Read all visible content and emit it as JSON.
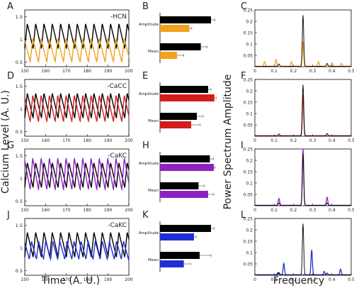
{
  "figure": {
    "left_ylabel": "Calcium Level (A. U.)",
    "left_xlabel": "Time (A. U.)",
    "right_ylabel": "Power Spectrum Amplitude",
    "right_xlabel": "Frequency"
  },
  "colors": {
    "control": "#000000",
    "hcn": "#f0a31e",
    "cacc": "#d21d1d",
    "cakc_up": "#8e22c0",
    "cakc_down": "#1f2fd6"
  },
  "chart_data": [
    {
      "panel": "A",
      "type": "line",
      "annotation": "-HCN",
      "xlim": [
        150,
        200
      ],
      "ylim": [
        0.4,
        1.65
      ],
      "xticks": [
        "150",
        "160",
        "170",
        "180",
        "190",
        "200"
      ],
      "yticks": [
        "0.5",
        "1",
        "1.5"
      ],
      "series": [
        {
          "color": "#000000",
          "period": 4,
          "min": 0.8,
          "max": 1.35
        },
        {
          "color": "#f0a31e",
          "period": 4,
          "min": 0.5,
          "max": 1.02
        }
      ]
    },
    {
      "panel": "B",
      "type": "bar",
      "categories": [
        "Amplitude",
        "Mean"
      ],
      "series": [
        {
          "color": "#000000",
          "values": [
            0.9,
            0.72
          ],
          "errors": [
            0.07,
            0.11
          ]
        },
        {
          "color": "#f0a31e",
          "values": [
            0.52,
            0.3
          ],
          "errors": [
            0.04,
            0.12
          ]
        }
      ]
    },
    {
      "panel": "C",
      "type": "line",
      "xlim": [
        0,
        0.5
      ],
      "ylim": [
        0,
        0.25
      ],
      "xticks": [
        "0",
        "0.1",
        "0.2",
        "0.3",
        "0.4",
        "0.5"
      ],
      "yticks": [
        "0.05",
        "0.1",
        "0.15",
        "0.2",
        "0.25"
      ],
      "series": [
        {
          "color": "#000000",
          "peaks": [
            [
              0.25,
              0.225
            ],
            [
              0.375,
              0.012
            ],
            [
              0.125,
              0.01
            ]
          ]
        },
        {
          "color": "#f0a31e",
          "peaks": [
            [
              0.25,
              0.11
            ],
            [
              0.05,
              0.02
            ],
            [
              0.11,
              0.03
            ],
            [
              0.19,
              0.02
            ],
            [
              0.33,
              0.02
            ],
            [
              0.4,
              0.015
            ],
            [
              0.45,
              0.012
            ]
          ]
        }
      ]
    },
    {
      "panel": "D",
      "type": "line",
      "annotation": "-CaCC",
      "xlim": [
        150,
        200
      ],
      "ylim": [
        0.4,
        1.65
      ],
      "xticks": [
        "150",
        "160",
        "170",
        "180",
        "190",
        "200"
      ],
      "yticks": [
        "0.5",
        "1",
        "1.5"
      ],
      "series": [
        {
          "color": "#000000",
          "period": 4,
          "min": 0.8,
          "max": 1.35
        },
        {
          "color": "#d21d1d",
          "period": 4,
          "min": 0.72,
          "max": 1.3
        }
      ]
    },
    {
      "panel": "E",
      "type": "bar",
      "categories": [
        "Amplitude",
        "Mean"
      ],
      "series": [
        {
          "color": "#000000",
          "values": [
            0.85,
            0.65
          ],
          "errors": [
            0.05,
            0.11
          ]
        },
        {
          "color": "#d21d1d",
          "values": [
            0.96,
            0.55
          ],
          "errors": [
            0.03,
            0.16
          ]
        }
      ]
    },
    {
      "panel": "F",
      "type": "line",
      "xlim": [
        0,
        0.5
      ],
      "ylim": [
        0,
        0.25
      ],
      "xticks": [
        "0",
        "0.1",
        "0.2",
        "0.3",
        "0.4",
        "0.5"
      ],
      "yticks": [
        "0.05",
        "0.1",
        "0.15",
        "0.2",
        "0.25"
      ],
      "series": [
        {
          "color": "#000000",
          "peaks": [
            [
              0.25,
              0.225
            ],
            [
              0.125,
              0.008
            ],
            [
              0.375,
              0.01
            ]
          ]
        },
        {
          "color": "#d21d1d",
          "peaks": [
            [
              0.25,
              0.18
            ]
          ]
        }
      ]
    },
    {
      "panel": "G",
      "type": "line",
      "annotation": "-CaKC",
      "xlim": [
        150,
        200
      ],
      "ylim": [
        0.4,
        1.65
      ],
      "xticks": [
        "150",
        "160",
        "170",
        "180",
        "190",
        "200"
      ],
      "yticks": [
        "0.5",
        "1",
        "1.5"
      ],
      "series": [
        {
          "color": "#000000",
          "period": 4,
          "min": 0.8,
          "max": 1.35
        },
        {
          "color": "#8e22c0",
          "period": 4,
          "min": 0.75,
          "max": 1.45
        }
      ]
    },
    {
      "panel": "H",
      "type": "bar",
      "categories": [
        "Amplitude",
        "Mean"
      ],
      "series": [
        {
          "color": "#000000",
          "values": [
            0.88,
            0.68
          ],
          "errors": [
            0.06,
            0.1
          ]
        },
        {
          "color": "#8e22c0",
          "values": [
            0.95,
            0.85
          ],
          "errors": [
            0.02,
            0.1
          ]
        }
      ]
    },
    {
      "panel": "I",
      "type": "line",
      "xlim": [
        0,
        0.5
      ],
      "ylim": [
        0,
        0.25
      ],
      "xticks": [
        "0",
        "0.1",
        "0.2",
        "0.3",
        "0.4",
        "0.5"
      ],
      "yticks": [
        "0.05",
        "0.1",
        "0.15",
        "0.2",
        "0.25"
      ],
      "series": [
        {
          "color": "#000000",
          "peaks": [
            [
              0.25,
              0.225
            ],
            [
              0.125,
              0.01
            ],
            [
              0.375,
              0.01
            ]
          ]
        },
        {
          "color": "#8e22c0",
          "peaks": [
            [
              0.25,
              0.25
            ],
            [
              0.125,
              0.03
            ],
            [
              0.375,
              0.035
            ]
          ]
        }
      ]
    },
    {
      "panel": "J",
      "type": "line",
      "annotation": "-CaKC",
      "xlim": [
        150,
        200
      ],
      "ylim": [
        0.4,
        1.65
      ],
      "xticks": [
        "150",
        "160",
        "170",
        "180",
        "190",
        "200"
      ],
      "yticks": [
        "0.5",
        "1",
        "1.5"
      ],
      "series": [
        {
          "color": "#000000",
          "period": 4,
          "min": 0.8,
          "max": 1.35
        },
        {
          "color": "#1f2fd6",
          "period": 3.4,
          "min": 0.75,
          "max": 1.15
        }
      ]
    },
    {
      "panel": "K",
      "type": "bar",
      "categories": [
        "Amplitude",
        "Mean"
      ],
      "series": [
        {
          "color": "#000000",
          "values": [
            0.9,
            0.7
          ],
          "errors": [
            0.06,
            0.2
          ]
        },
        {
          "color": "#1f2fd6",
          "values": [
            0.6,
            0.42
          ],
          "errors": [
            0.04,
            0.12
          ]
        }
      ]
    },
    {
      "panel": "L",
      "type": "line",
      "xlim": [
        0,
        0.5
      ],
      "ylim": [
        0,
        0.25
      ],
      "xticks": [
        "0",
        "0.1",
        "0.2",
        "0.3",
        "0.4",
        "0.5"
      ],
      "yticks": [
        "0.05",
        "0.1",
        "0.15",
        "0.2",
        "0.25"
      ],
      "series": [
        {
          "color": "#000000",
          "peaks": [
            [
              0.25,
              0.225
            ],
            [
              0.125,
              0.01
            ],
            [
              0.375,
              0.008
            ]
          ]
        },
        {
          "color": "#1f2fd6",
          "peaks": [
            [
              0.15,
              0.05
            ],
            [
              0.295,
              0.11
            ],
            [
              0.445,
              0.025
            ],
            [
              0.12,
              0.01
            ],
            [
              0.36,
              0.015
            ]
          ]
        }
      ]
    }
  ]
}
